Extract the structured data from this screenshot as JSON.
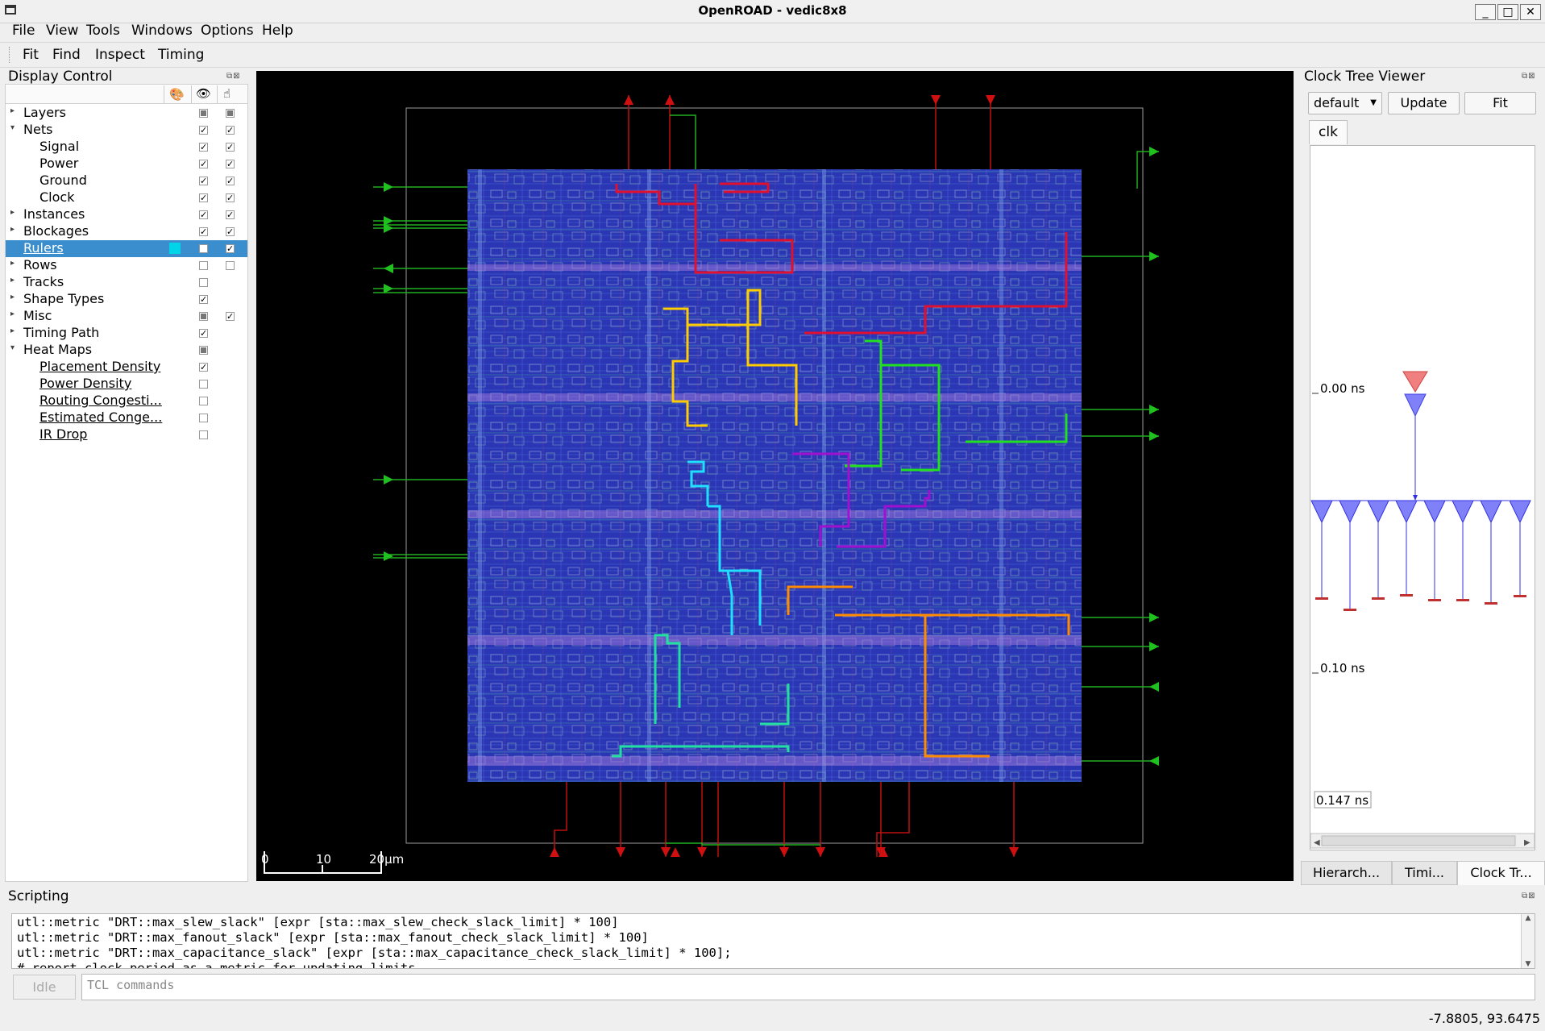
{
  "window": {
    "title": "OpenROAD - vedic8x8",
    "minimize": "_",
    "maximize": "□",
    "close": "✕"
  },
  "menu": [
    {
      "label": "File"
    },
    {
      "label": "View"
    },
    {
      "label": "Tools"
    },
    {
      "label": "Windows"
    },
    {
      "label": "Options"
    },
    {
      "label": "Help"
    }
  ],
  "toolbar": {
    "fit": "Fit",
    "find": "Find",
    "inspect": "Inspect",
    "timing": "Timing"
  },
  "display_control": {
    "title": "Display Control",
    "items": [
      {
        "label": "Layers",
        "expandable": true,
        "expanded": false,
        "indent": 0,
        "vis": "partial",
        "sel": "partial"
      },
      {
        "label": "Nets",
        "expandable": true,
        "expanded": true,
        "indent": 0,
        "vis": "checked",
        "sel": "checked"
      },
      {
        "label": "Signal",
        "expandable": false,
        "indent": 1,
        "vis": "checked",
        "sel": "checked"
      },
      {
        "label": "Power",
        "expandable": false,
        "indent": 1,
        "vis": "checked",
        "sel": "checked"
      },
      {
        "label": "Ground",
        "expandable": false,
        "indent": 1,
        "vis": "checked",
        "sel": "checked"
      },
      {
        "label": "Clock",
        "expandable": false,
        "indent": 1,
        "vis": "checked",
        "sel": "checked"
      },
      {
        "label": "Instances",
        "expandable": true,
        "expanded": false,
        "indent": 0,
        "vis": "checked",
        "sel": "checked"
      },
      {
        "label": "Blockages",
        "expandable": true,
        "expanded": false,
        "indent": 0,
        "vis": "checked",
        "sel": "checked"
      },
      {
        "label": "Rulers",
        "expandable": false,
        "indent": 0,
        "vis": "unchecked",
        "sel": "checked",
        "selected": true,
        "swatch": "#00d4e8",
        "link": true
      },
      {
        "label": "Rows",
        "expandable": true,
        "expanded": false,
        "indent": 0,
        "vis": "unchecked",
        "sel": "unchecked"
      },
      {
        "label": "Tracks",
        "expandable": true,
        "expanded": false,
        "indent": 0,
        "vis": "unchecked"
      },
      {
        "label": "Shape Types",
        "expandable": true,
        "expanded": false,
        "indent": 0,
        "vis": "checked"
      },
      {
        "label": "Misc",
        "expandable": true,
        "expanded": false,
        "indent": 0,
        "vis": "partial",
        "sel": "checked"
      },
      {
        "label": "Timing Path",
        "expandable": true,
        "expanded": false,
        "indent": 0,
        "vis": "checked"
      },
      {
        "label": "Heat Maps",
        "expandable": true,
        "expanded": true,
        "indent": 0,
        "vis": "partial"
      },
      {
        "label": "Placement Density",
        "expandable": false,
        "indent": 1,
        "vis": "checked",
        "link": true
      },
      {
        "label": "Power Density",
        "expandable": false,
        "indent": 1,
        "vis": "unchecked",
        "link": true
      },
      {
        "label": "Routing Congesti...",
        "expandable": false,
        "indent": 1,
        "vis": "unchecked",
        "link": true
      },
      {
        "label": "Estimated Conge...",
        "expandable": false,
        "indent": 1,
        "vis": "unchecked",
        "link": true
      },
      {
        "label": "IR Drop",
        "expandable": false,
        "indent": 1,
        "vis": "unchecked",
        "link": true
      }
    ]
  },
  "layout_view": {
    "scale_labels": [
      "0",
      "10",
      "20μm"
    ]
  },
  "clock_tree_viewer": {
    "title": "Clock Tree Viewer",
    "corner_select": "default",
    "update_label": "Update",
    "fit_label": "Fit",
    "clock_tab": "clk",
    "time_labels": [
      "0.00 ns",
      "0.10 ns"
    ],
    "max_label": "0.147 ns",
    "colors": {
      "root_buffer": "#f08080",
      "buffer": "#8080f8",
      "wire": "#3030e0",
      "sink": "#c03030"
    }
  },
  "bottom_tabs": [
    {
      "label": "Hierarch...",
      "active": false
    },
    {
      "label": "Timi...",
      "active": false
    },
    {
      "label": "Clock Tr...",
      "active": true
    }
  ],
  "scripting": {
    "title": "Scripting",
    "lines": [
      "utl::metric \"DRT::max_slew_slack\" [expr [sta::max_slew_check_slack_limit] * 100]",
      "utl::metric \"DRT::max_fanout_slack\" [expr [sta::max_fanout_check_slack_limit] * 100]",
      "utl::metric \"DRT::max_capacitance_slack\" [expr [sta::max_capacitance_check_slack_limit] * 100];",
      "# report clock period as a metric for updating limits"
    ],
    "idle_label": "Idle",
    "input_placeholder": "TCL commands"
  },
  "status": {
    "coords": "-7.8805, 93.6475"
  }
}
